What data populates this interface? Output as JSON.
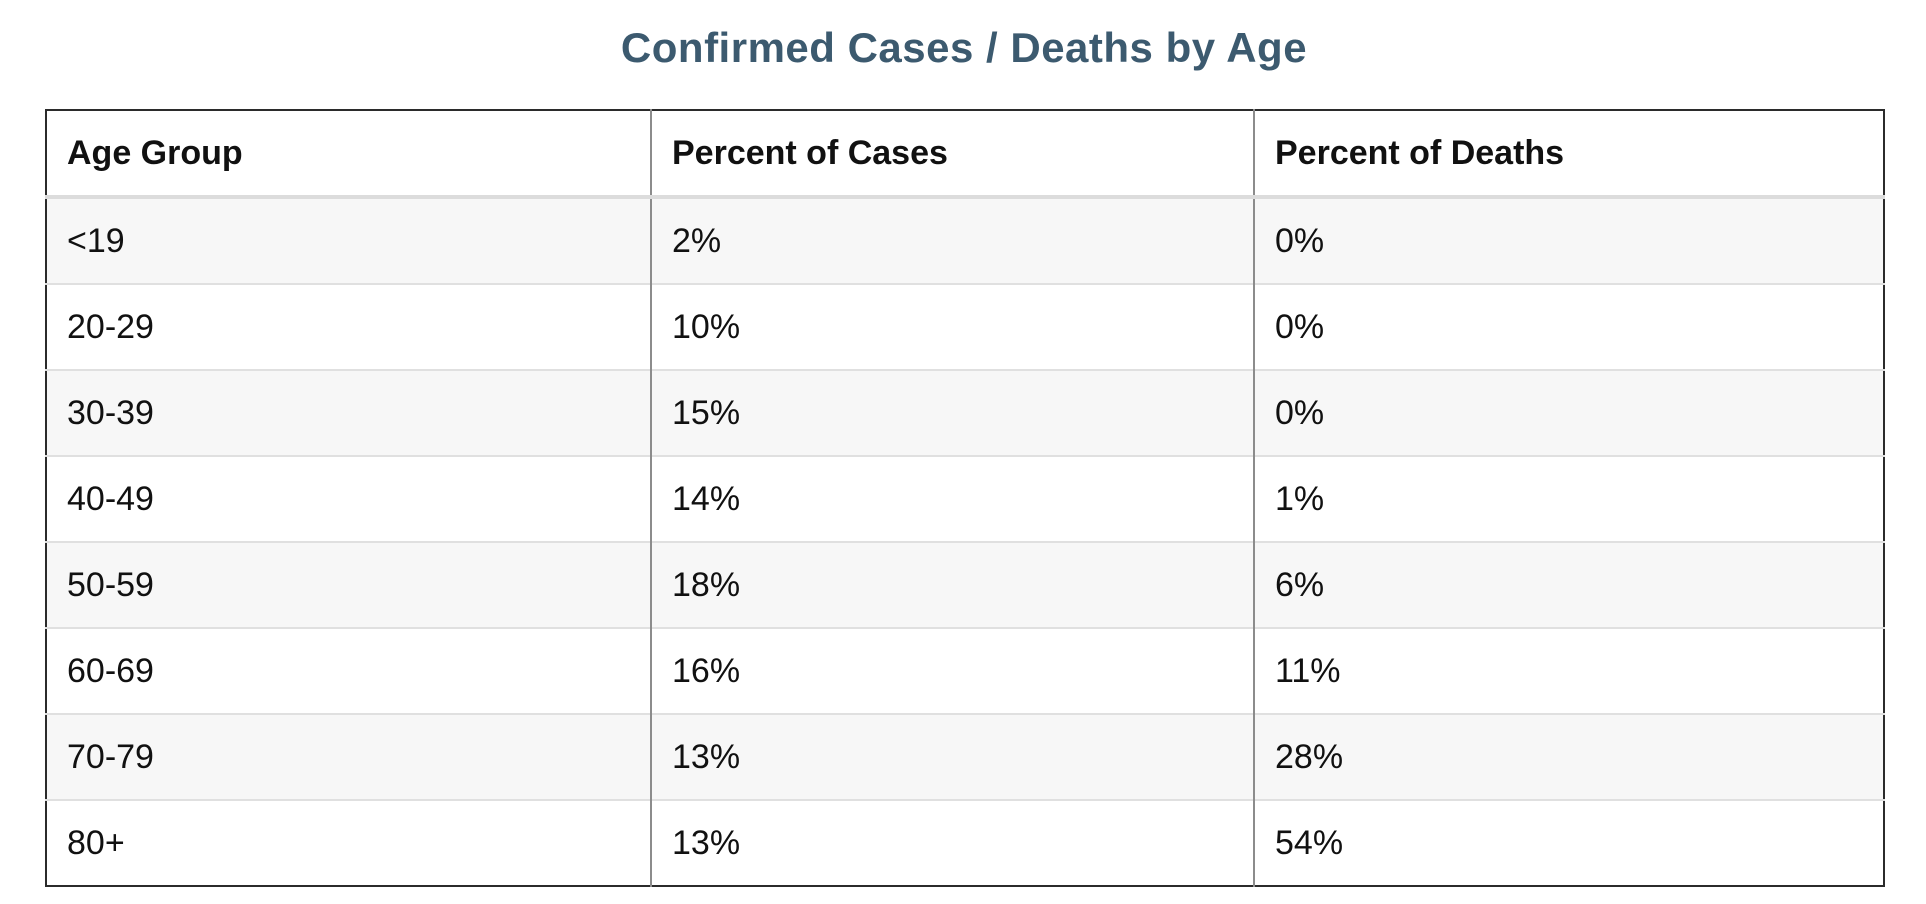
{
  "page": {
    "background": "#ffffff"
  },
  "title": {
    "text": "Confirmed Cases / Deaths by Age",
    "color": "#3c5a6f"
  },
  "table": {
    "headers": [
      "Age Group",
      "Percent of Cases",
      "Percent of Deaths"
    ],
    "rows": [
      {
        "age": "<19",
        "cases": "2%",
        "deaths": "0%"
      },
      {
        "age": "20-29",
        "cases": "10%",
        "deaths": "0%"
      },
      {
        "age": "30-39",
        "cases": "15%",
        "deaths": "0%"
      },
      {
        "age": "40-49",
        "cases": "14%",
        "deaths": "1%"
      },
      {
        "age": "50-59",
        "cases": "18%",
        "deaths": "6%"
      },
      {
        "age": "60-69",
        "cases": "16%",
        "deaths": "11%"
      },
      {
        "age": "70-79",
        "cases": "13%",
        "deaths": "28%"
      },
      {
        "age": "80+",
        "cases": "13%",
        "deaths": "54%"
      }
    ],
    "colors": {
      "stripe": "#f7f7f7",
      "row_divider": "#e0e0e0",
      "column_divider": "#8c8c8c",
      "outer_border": "#2b2b2b",
      "header_divider": "#dcdcdc"
    }
  },
  "chart_data": {
    "type": "table",
    "title": "Confirmed Cases / Deaths by Age",
    "columns": [
      "Age Group",
      "Percent of Cases",
      "Percent of Deaths"
    ],
    "categories": [
      "<19",
      "20-29",
      "30-39",
      "40-49",
      "50-59",
      "60-69",
      "70-79",
      "80+"
    ],
    "series": [
      {
        "name": "Percent of Cases",
        "unit": "%",
        "values": [
          2,
          10,
          15,
          14,
          18,
          16,
          13,
          13
        ]
      },
      {
        "name": "Percent of Deaths",
        "unit": "%",
        "values": [
          0,
          0,
          0,
          1,
          6,
          11,
          28,
          54
        ]
      }
    ],
    "legend_position": "none",
    "grid": "table-borders"
  }
}
